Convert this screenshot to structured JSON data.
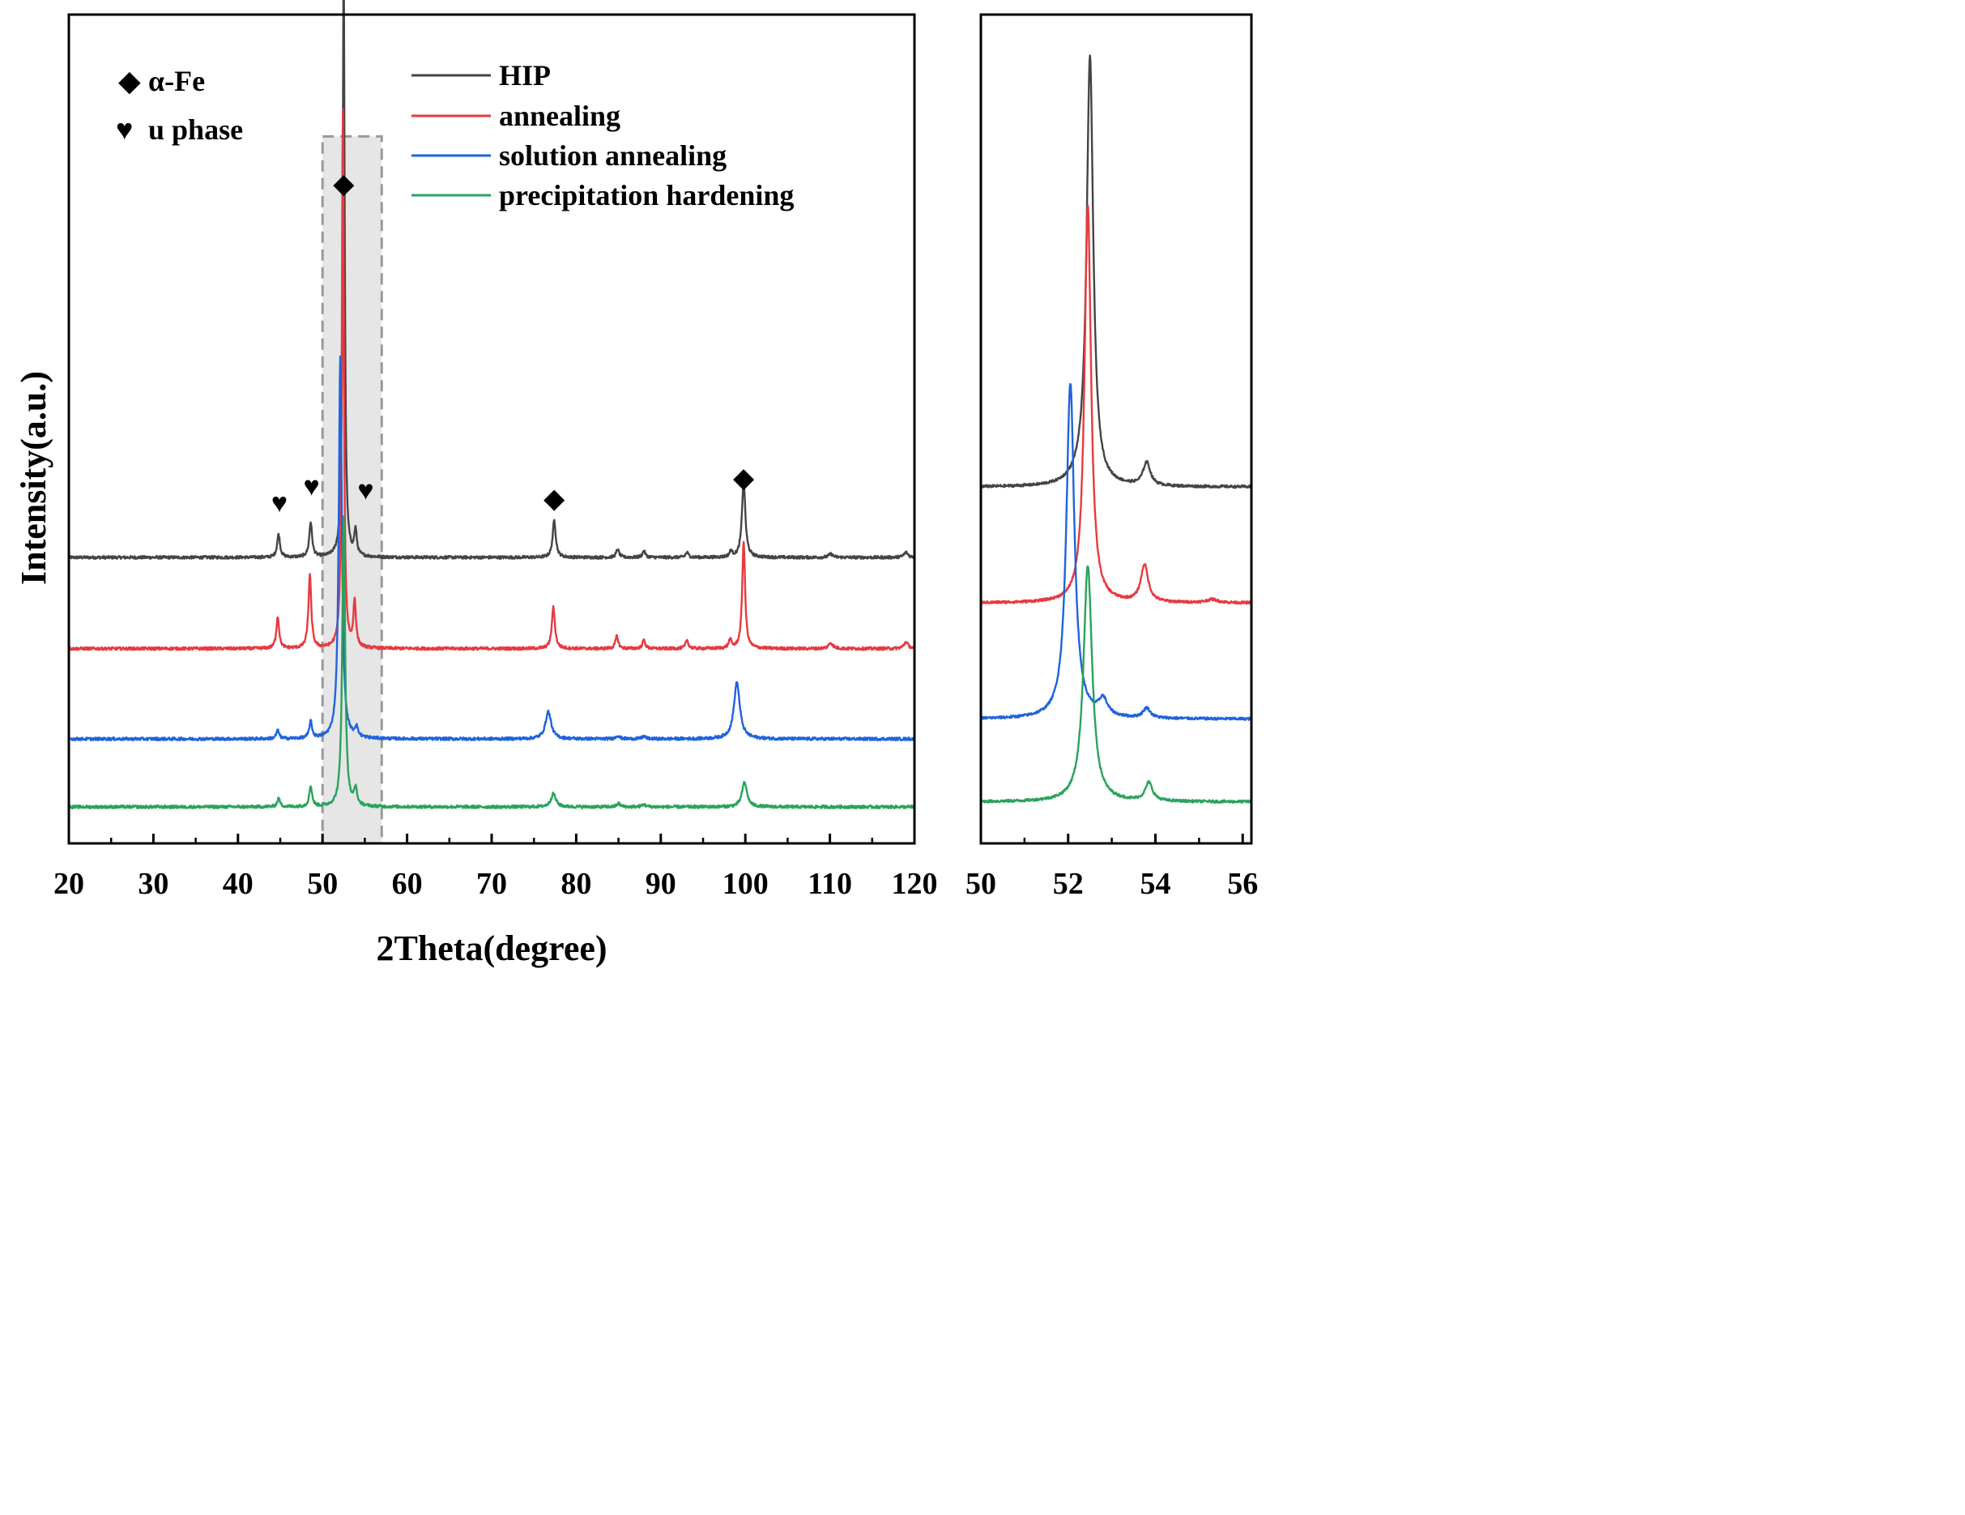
{
  "chart_data": [
    {
      "type": "line",
      "panel": "main",
      "xlabel": "2Theta(degree)",
      "ylabel": "Intensity(a.u.)",
      "xlim": [
        20,
        120
      ],
      "ylim": [
        0,
        10
      ],
      "x_ticks": [
        20,
        30,
        40,
        50,
        60,
        70,
        80,
        90,
        100,
        110,
        120
      ],
      "minor_x_ticks": [
        25,
        35,
        45,
        55,
        65,
        75,
        85,
        95,
        105,
        115
      ],
      "highlight_region": [
        50,
        57
      ],
      "legend": [
        {
          "label": "HIP",
          "color": "#444444"
        },
        {
          "label": "annealing",
          "color": "#e8393f"
        },
        {
          "label": "solution annealing",
          "color": "#1f63dd"
        },
        {
          "label": "precipitation hardening",
          "color": "#2aa35a"
        }
      ],
      "phase_legend": [
        {
          "symbol": "◆",
          "label": "α-Fe"
        },
        {
          "symbol": "♥",
          "label": "u phase"
        }
      ],
      "phase_markers": [
        {
          "symbol": "♥",
          "x": 44.9,
          "y": 4.0
        },
        {
          "symbol": "♥",
          "x": 48.7,
          "y": 4.2
        },
        {
          "symbol": "♥",
          "x": 55.1,
          "y": 4.15
        },
        {
          "symbol": "◆",
          "x": 52.5,
          "y": 7.85
        },
        {
          "symbol": "◆",
          "x": 77.4,
          "y": 4.05
        },
        {
          "symbol": "◆",
          "x": 99.8,
          "y": 4.3
        }
      ],
      "series": [
        {
          "name": "HIP",
          "color": "#444444",
          "baseline": 3.45,
          "peaks": [
            [
              44.8,
              0.28,
              0.2
            ],
            [
              48.6,
              0.42,
              0.2
            ],
            [
              52.5,
              7.3,
              0.14
            ],
            [
              53.9,
              0.3,
              0.18
            ],
            [
              77.4,
              0.45,
              0.22
            ],
            [
              84.9,
              0.1,
              0.2
            ],
            [
              88.0,
              0.08,
              0.2
            ],
            [
              93.1,
              0.06,
              0.2
            ],
            [
              98.3,
              0.07,
              0.2
            ],
            [
              99.8,
              0.92,
              0.24
            ],
            [
              110.1,
              0.04,
              0.3
            ],
            [
              119.0,
              0.06,
              0.3
            ]
          ]
        },
        {
          "name": "annealing",
          "color": "#e8393f",
          "baseline": 2.35,
          "peaks": [
            [
              44.7,
              0.38,
              0.2
            ],
            [
              48.5,
              0.88,
              0.2
            ],
            [
              52.4,
              6.5,
              0.14
            ],
            [
              53.8,
              0.55,
              0.18
            ],
            [
              77.3,
              0.5,
              0.22
            ],
            [
              84.8,
              0.15,
              0.2
            ],
            [
              88.0,
              0.1,
              0.2
            ],
            [
              93.1,
              0.1,
              0.2
            ],
            [
              98.2,
              0.1,
              0.2
            ],
            [
              99.8,
              1.3,
              0.2
            ],
            [
              110.1,
              0.07,
              0.3
            ],
            [
              119.0,
              0.08,
              0.3
            ]
          ]
        },
        {
          "name": "solution annealing",
          "color": "#1f63dd",
          "baseline": 1.26,
          "peaks": [
            [
              44.7,
              0.1,
              0.2
            ],
            [
              48.6,
              0.2,
              0.2
            ],
            [
              52.1,
              4.6,
              0.22
            ],
            [
              54.0,
              0.12,
              0.2
            ],
            [
              76.7,
              0.33,
              0.4
            ],
            [
              84.9,
              0.04,
              0.25
            ],
            [
              88.0,
              0.03,
              0.25
            ],
            [
              99.0,
              0.68,
              0.42
            ]
          ]
        },
        {
          "name": "precipitation hardening",
          "color": "#2aa35a",
          "baseline": 0.44,
          "peaks": [
            [
              44.8,
              0.1,
              0.2
            ],
            [
              48.6,
              0.25,
              0.2
            ],
            [
              52.5,
              3.5,
              0.2
            ],
            [
              53.9,
              0.2,
              0.2
            ],
            [
              77.3,
              0.16,
              0.35
            ],
            [
              85.0,
              0.04,
              0.25
            ],
            [
              88.0,
              0.03,
              0.25
            ],
            [
              99.9,
              0.3,
              0.35
            ]
          ]
        }
      ]
    },
    {
      "type": "line",
      "panel": "inset",
      "xlim": [
        50,
        56.2
      ],
      "ylim": [
        0,
        10
      ],
      "x_ticks": [
        50,
        52,
        54,
        56
      ],
      "minor_x_ticks": [
        51,
        53,
        55
      ],
      "series": [
        {
          "name": "HIP",
          "color": "#444444",
          "baseline": 4.3,
          "peaks": [
            [
              52.5,
              5.15,
              0.09
            ],
            [
              52.3,
              0.09,
              0.28
            ],
            [
              53.8,
              0.28,
              0.1
            ]
          ]
        },
        {
          "name": "annealing",
          "color": "#e8393f",
          "baseline": 2.9,
          "peaks": [
            [
              52.45,
              4.8,
              0.09
            ],
            [
              53.75,
              0.45,
              0.1
            ],
            [
              55.3,
              0.04,
              0.15
            ]
          ]
        },
        {
          "name": "solution annealing",
          "color": "#1f63dd",
          "baseline": 1.5,
          "peaks": [
            [
              52.05,
              4.05,
              0.11
            ],
            [
              52.8,
              0.2,
              0.12
            ],
            [
              53.8,
              0.12,
              0.1
            ]
          ]
        },
        {
          "name": "precipitation hardening",
          "color": "#2aa35a",
          "baseline": 0.5,
          "peaks": [
            [
              52.45,
              2.85,
              0.12
            ],
            [
              53.85,
              0.22,
              0.1
            ]
          ]
        }
      ]
    }
  ]
}
